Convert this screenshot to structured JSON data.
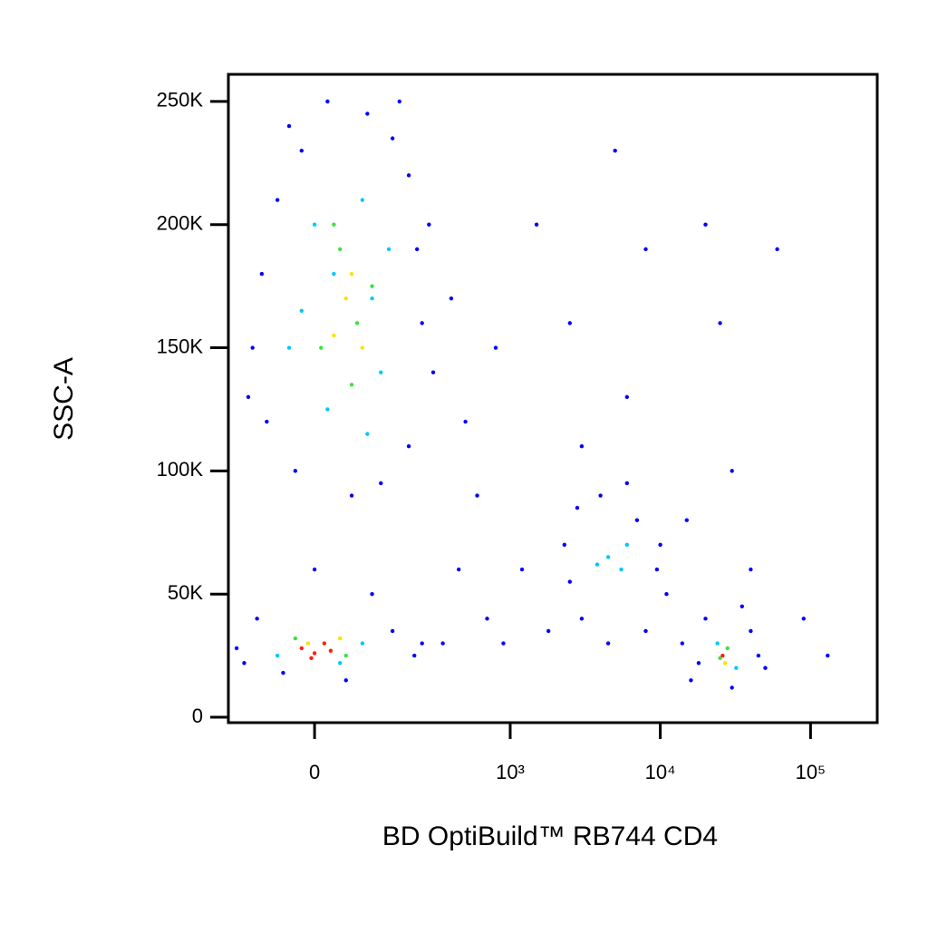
{
  "chart_data": {
    "type": "scatter",
    "xlabel": "BD OptiBuild™ RB744 CD4",
    "ylabel": "SSC-A",
    "xscale": "arcsinh",
    "xlim": [
      -174,
      278000
    ],
    "ylim": [
      -2200,
      261000
    ],
    "xticks": [
      0,
      {
        "value": 1000,
        "label": "10³"
      },
      {
        "value": 10000,
        "label": "10⁴"
      },
      {
        "value": 100000,
        "label": "10⁵"
      }
    ],
    "yticks": [
      0,
      {
        "value": 50000,
        "label": "50K"
      },
      {
        "value": 100000,
        "label": "100K"
      },
      {
        "value": 150000,
        "label": "150K"
      },
      {
        "value": 200000,
        "label": "200K"
      },
      {
        "value": 250000,
        "label": "250K"
      }
    ],
    "series": [
      {
        "color": "#0000ff",
        "x": [
          -40,
          20,
          90,
          150,
          -60,
          200,
          -90,
          230,
          -110,
          250,
          -80,
          200,
          -30,
          120,
          60,
          -120,
          300,
          280,
          -20,
          170,
          400,
          500,
          600,
          800,
          450,
          700,
          900,
          350,
          1500,
          2500,
          3000,
          5000,
          6000,
          8000,
          1200,
          1800,
          20000,
          25000,
          30000,
          60000,
          90000,
          130000,
          40000,
          15000,
          -150,
          -100,
          150,
          220,
          50,
          -50,
          100,
          0,
          -130,
          250,
          2300,
          2800,
          4000,
          7000,
          9500,
          11000,
          3000,
          4500,
          8000,
          2500,
          6000,
          10000,
          14000,
          16000,
          20000,
          35000,
          45000,
          50000,
          30000,
          40000,
          18000
        ],
        "y": [
          240000,
          250000,
          245000,
          235000,
          210000,
          220000,
          180000,
          190000,
          150000,
          160000,
          120000,
          110000,
          100000,
          95000,
          90000,
          130000,
          140000,
          200000,
          230000,
          250000,
          170000,
          120000,
          90000,
          150000,
          60000,
          40000,
          30000,
          30000,
          200000,
          160000,
          110000,
          230000,
          130000,
          190000,
          60000,
          35000,
          200000,
          160000,
          100000,
          190000,
          40000,
          25000,
          60000,
          80000,
          28000,
          40000,
          35000,
          25000,
          15000,
          18000,
          50000,
          60000,
          22000,
          30000,
          70000,
          85000,
          90000,
          80000,
          60000,
          50000,
          40000,
          30000,
          35000,
          55000,
          95000,
          70000,
          30000,
          15000,
          40000,
          45000,
          25000,
          20000,
          12000,
          35000,
          22000
        ]
      },
      {
        "color": "#00c8ff",
        "x": [
          0,
          80,
          30,
          100,
          -40,
          120,
          20,
          90,
          -20,
          140,
          4500,
          5500,
          6000,
          3800,
          -60,
          80,
          40,
          24000,
          32000
        ],
        "y": [
          200000,
          210000,
          180000,
          170000,
          150000,
          140000,
          125000,
          115000,
          165000,
          190000,
          65000,
          60000,
          70000,
          62000,
          25000,
          30000,
          22000,
          30000,
          20000
        ]
      },
      {
        "color": "#40e040",
        "x": [
          40,
          70,
          10,
          60,
          100,
          30,
          -30,
          50,
          25000,
          28000
        ],
        "y": [
          190000,
          160000,
          150000,
          135000,
          175000,
          200000,
          32000,
          25000,
          24000,
          28000
        ]
      },
      {
        "color": "#ffe000",
        "x": [
          50,
          30,
          80,
          60,
          -10,
          40,
          27000
        ],
        "y": [
          170000,
          155000,
          150000,
          180000,
          30000,
          32000,
          22000
        ]
      },
      {
        "color": "#ff2000",
        "x": [
          -20,
          0,
          15,
          -5,
          25,
          26000
        ],
        "y": [
          28000,
          26000,
          30000,
          24000,
          27000,
          25000
        ]
      }
    ]
  }
}
